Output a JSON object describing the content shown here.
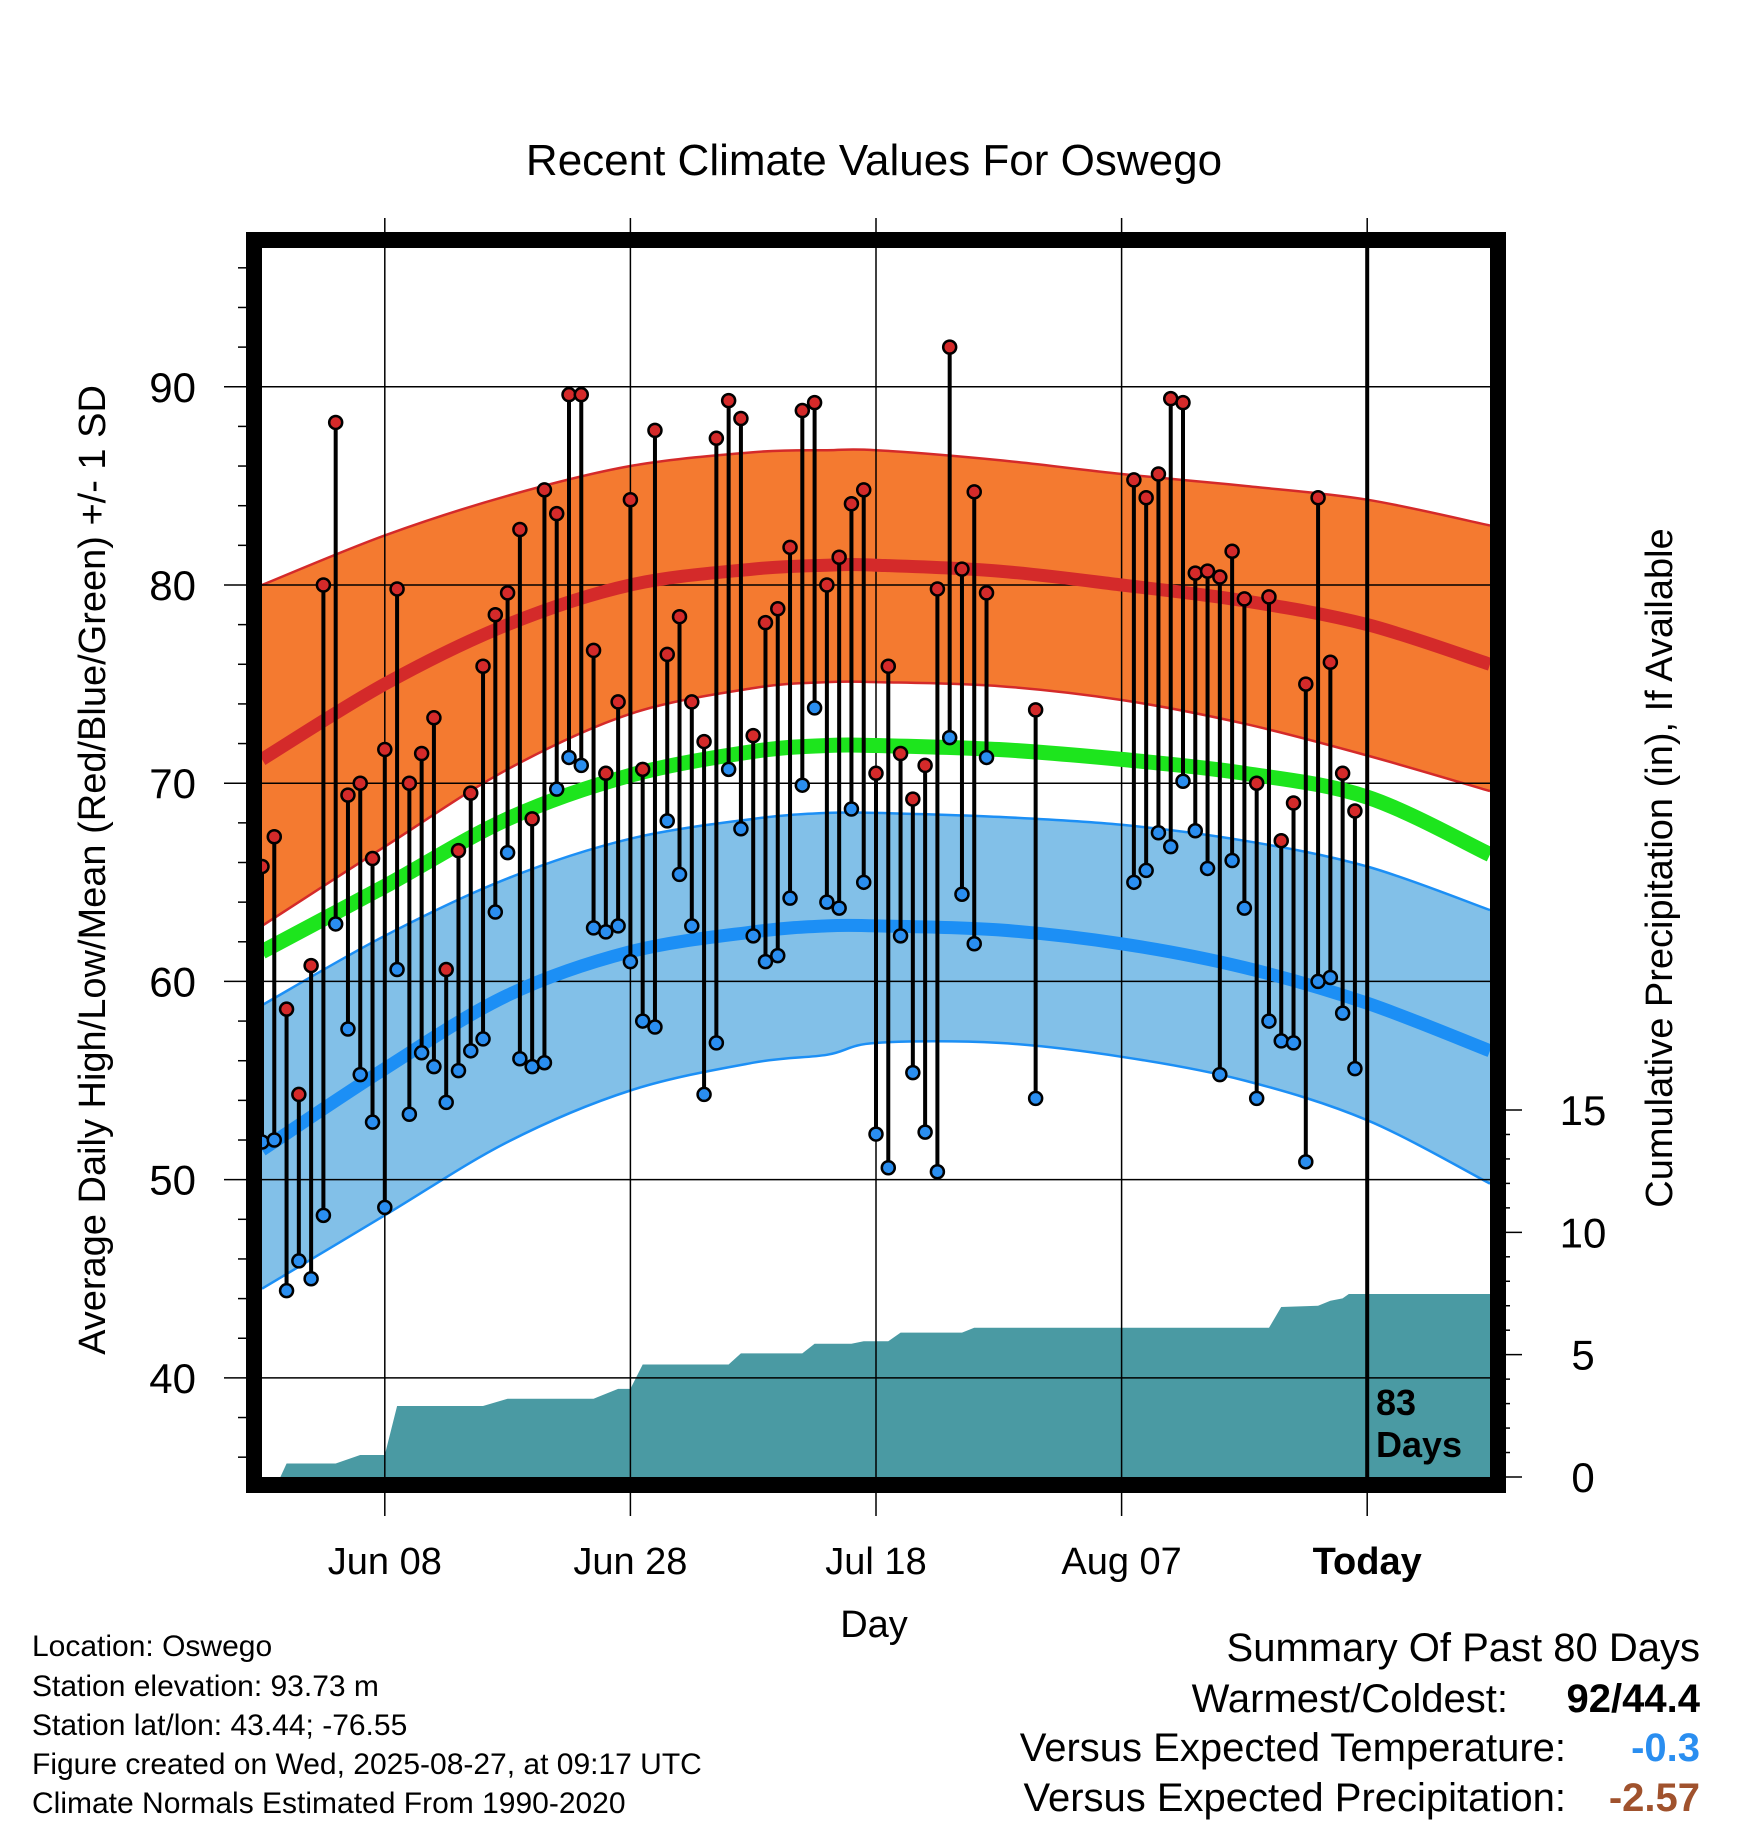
{
  "chart_data": {
    "type": "line",
    "title": "Recent Climate Values For Oswego",
    "xlabel": "Day",
    "ylabel_left": "Average Daily High/Low/Mean (Red/Blue/Green) +/- 1 SD",
    "ylabel_right": "Cumulative Precipitation (in), If Available",
    "x_ticks": [
      {
        "day": 10,
        "label": "Jun 08"
      },
      {
        "day": 30,
        "label": "Jun 28"
      },
      {
        "day": 50,
        "label": "Jul 18"
      },
      {
        "day": 70,
        "label": "Aug 07"
      },
      {
        "day": 90,
        "label": "Today"
      }
    ],
    "y_ticks_left": [
      40,
      50,
      60,
      70,
      80,
      90
    ],
    "y_ticks_right": [
      0,
      5,
      10,
      15
    ],
    "ylim_left": [
      35,
      97
    ],
    "precip_ylim": [
      0,
      15
    ],
    "xlim": [
      0,
      100
    ],
    "today_day": 90,
    "days_label": "83\nDays",
    "grid": true,
    "normals": {
      "days": [
        0,
        10,
        20,
        30,
        40,
        46,
        50,
        60,
        70,
        80,
        90,
        100
      ],
      "high_mean": [
        71.2,
        75.0,
        78.0,
        80.0,
        80.8,
        81.0,
        81.0,
        80.7,
        80.0,
        79.2,
        78.0,
        76.0
      ],
      "high_upper": [
        80.0,
        82.5,
        84.5,
        86.0,
        86.7,
        86.8,
        86.8,
        86.3,
        85.6,
        85.0,
        84.3,
        83.0
      ],
      "high_lower": [
        62.8,
        66.8,
        70.7,
        73.5,
        74.8,
        75.1,
        75.1,
        74.9,
        74.2,
        73.0,
        71.4,
        69.6
      ],
      "mean": [
        61.5,
        64.8,
        68.2,
        70.4,
        71.6,
        71.9,
        71.9,
        71.7,
        71.2,
        70.5,
        69.3,
        66.4
      ],
      "low_mean": [
        51.5,
        55.6,
        59.3,
        61.5,
        62.5,
        62.8,
        62.8,
        62.6,
        61.9,
        60.7,
        58.9,
        56.5
      ],
      "low_upper": [
        58.8,
        62.3,
        65.2,
        67.2,
        68.2,
        68.5,
        68.5,
        68.3,
        67.9,
        67.1,
        65.8,
        63.6
      ],
      "low_lower": [
        44.5,
        48.2,
        51.9,
        54.5,
        55.9,
        56.3,
        56.9,
        56.9,
        56.2,
        55.0,
        53.0,
        49.8
      ]
    },
    "daily": {
      "days": [
        0,
        1,
        2,
        3,
        4,
        5,
        6,
        7,
        8,
        9,
        10,
        11,
        12,
        13,
        14,
        15,
        16,
        17,
        18,
        19,
        20,
        21,
        22,
        23,
        24,
        25,
        26,
        27,
        28,
        29,
        30,
        31,
        32,
        33,
        34,
        35,
        36,
        37,
        38,
        39,
        40,
        41,
        42,
        43,
        44,
        45,
        46,
        47,
        48,
        49,
        50,
        51,
        52,
        53,
        54,
        55,
        56,
        57,
        58,
        59,
        63,
        71,
        72,
        73,
        74,
        75,
        76,
        77,
        78,
        79,
        80,
        81,
        82,
        83,
        84,
        85,
        86,
        87,
        88,
        89
      ],
      "highs": [
        65.8,
        67.3,
        58.6,
        54.3,
        60.8,
        80.0,
        88.2,
        69.4,
        70.0,
        66.2,
        71.7,
        79.8,
        70.0,
        71.5,
        73.3,
        60.6,
        66.6,
        69.5,
        75.9,
        78.5,
        79.6,
        82.8,
        68.2,
        84.8,
        83.6,
        89.6,
        89.6,
        76.7,
        70.5,
        74.1,
        84.3,
        70.7,
        87.8,
        76.5,
        78.4,
        74.1,
        72.1,
        87.4,
        89.3,
        88.4,
        72.4,
        78.1,
        78.8,
        81.9,
        88.8,
        89.2,
        80.0,
        81.4,
        84.1,
        84.8,
        70.5,
        75.9,
        71.5,
        69.2,
        70.9,
        79.8,
        92.0,
        80.8,
        84.7,
        79.6,
        73.7,
        85.3,
        84.4,
        85.6,
        89.4,
        89.2,
        80.6,
        80.7,
        80.4,
        81.7,
        79.3,
        70.0,
        79.4,
        67.1,
        69.0,
        75.0,
        84.4,
        76.1,
        70.5,
        68.6
      ],
      "lows": [
        51.9,
        52.0,
        44.4,
        45.9,
        45.0,
        48.2,
        62.9,
        57.6,
        55.3,
        52.9,
        48.6,
        60.6,
        53.3,
        56.4,
        55.7,
        53.9,
        55.5,
        56.5,
        57.1,
        63.5,
        66.5,
        56.1,
        55.7,
        55.9,
        69.7,
        71.3,
        70.9,
        62.7,
        62.5,
        62.8,
        61.0,
        58.0,
        57.7,
        68.1,
        65.4,
        62.8,
        54.3,
        56.9,
        70.7,
        67.7,
        62.3,
        61.0,
        61.3,
        64.2,
        69.9,
        73.8,
        64.0,
        63.7,
        68.7,
        65.0,
        52.3,
        50.6,
        62.3,
        55.4,
        52.4,
        50.4,
        72.3,
        64.4,
        61.9,
        71.3,
        54.1,
        65.0,
        65.6,
        67.5,
        66.8,
        70.1,
        67.6,
        65.7,
        55.3,
        66.1,
        63.7,
        54.1,
        58.0,
        57.0,
        56.9,
        50.9,
        60.0,
        60.2,
        58.4,
        55.6
      ]
    },
    "precip_cumulative": [
      [
        0,
        0
      ],
      [
        1.5,
        0
      ],
      [
        2,
        0.55
      ],
      [
        6,
        0.55
      ],
      [
        8,
        0.9
      ],
      [
        10,
        0.9
      ],
      [
        11,
        2.9
      ],
      [
        18,
        2.9
      ],
      [
        20,
        3.2
      ],
      [
        27,
        3.2
      ],
      [
        29,
        3.6
      ],
      [
        30,
        3.6
      ],
      [
        31,
        4.6
      ],
      [
        38,
        4.6
      ],
      [
        39,
        5.05
      ],
      [
        44,
        5.05
      ],
      [
        45,
        5.45
      ],
      [
        48,
        5.45
      ],
      [
        49,
        5.55
      ],
      [
        51,
        5.55
      ],
      [
        52,
        5.9
      ],
      [
        57,
        5.9
      ],
      [
        58,
        6.1
      ],
      [
        82,
        6.1
      ],
      [
        83,
        6.95
      ],
      [
        86,
        7.0
      ],
      [
        87,
        7.2
      ],
      [
        88,
        7.3
      ],
      [
        88.5,
        7.48
      ],
      [
        100,
        7.48
      ]
    ]
  },
  "colors": {
    "high_band": "#f47a30",
    "high_line": "#d42a2a",
    "mean_line": "#1de51d",
    "low_band": "#82c0e8",
    "low_line": "#1c8ff5",
    "precip_fill": "#4a9aa3",
    "high_dot": "#d42a2a",
    "low_dot": "#2a8ef0",
    "temp_anomaly": "#2a8ef0",
    "precip_anomaly": "#a0522d"
  },
  "info": {
    "location": "Location: Oswego",
    "elevation": "Station elevation: 93.73 m",
    "latlon": "Station lat/lon: 43.44; -76.55",
    "created": "Figure created on Wed, 2025-08-27, at 09:17 UTC",
    "normals": "Climate Normals Estimated From 1990-2020"
  },
  "summary": {
    "title": "Summary Of Past 80 Days",
    "warmest_label": "Warmest/Coldest:",
    "warmest_value": "92/44.4",
    "temp_label": "Versus Expected Temperature:",
    "temp_value": "-0.3",
    "precip_label": "Versus Expected Precipitation:",
    "precip_value": "-2.57"
  }
}
